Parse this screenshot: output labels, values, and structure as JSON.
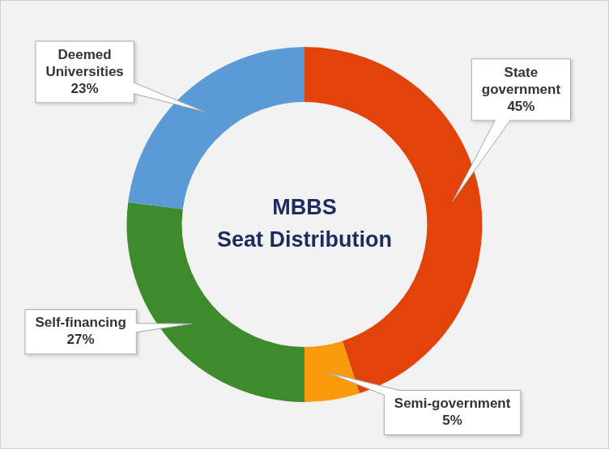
{
  "chart_data": {
    "type": "doughnut",
    "title": "MBBS Seat Distribution",
    "categories": [
      "State government",
      "Semi-government",
      "Self-financing",
      "Deemed Universities"
    ],
    "values": [
      45,
      5,
      27,
      23
    ],
    "value_labels": [
      "45%",
      "5%",
      "27%",
      "23%"
    ],
    "colors": [
      "#e2430b",
      "#f99b0c",
      "#3d8b2c",
      "#5b9bd5"
    ],
    "data_labels": true
  }
}
